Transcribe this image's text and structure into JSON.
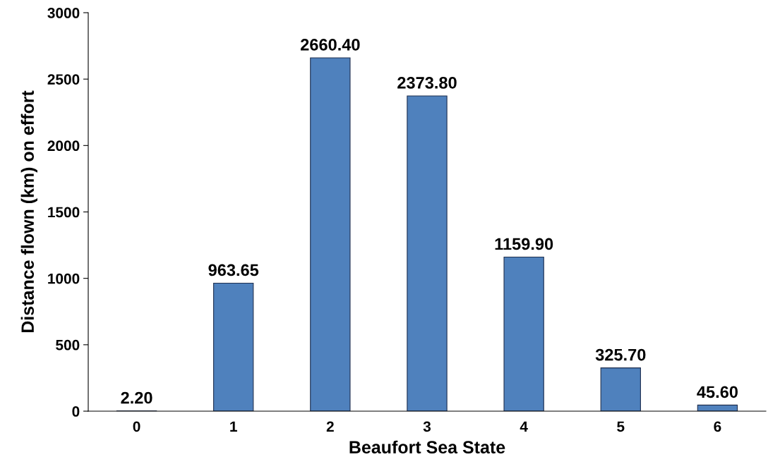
{
  "chart_data": {
    "type": "bar",
    "xlabel": "Beaufort Sea State",
    "ylabel": "Distance flown (km) on effort",
    "categories": [
      "0",
      "1",
      "2",
      "3",
      "4",
      "5",
      "6"
    ],
    "values": [
      2.2,
      963.65,
      2660.4,
      2373.8,
      1159.9,
      325.7,
      45.6
    ],
    "value_labels": [
      "2.20",
      "963.65",
      "2660.40",
      "2373.80",
      "1159.90",
      "325.70",
      "45.60"
    ],
    "color": "#4f81bd",
    "ylim": [
      0,
      3000
    ],
    "yticks": [
      0,
      500,
      1000,
      1500,
      2000,
      2500,
      3000
    ],
    "grid": false,
    "legend": false
  }
}
